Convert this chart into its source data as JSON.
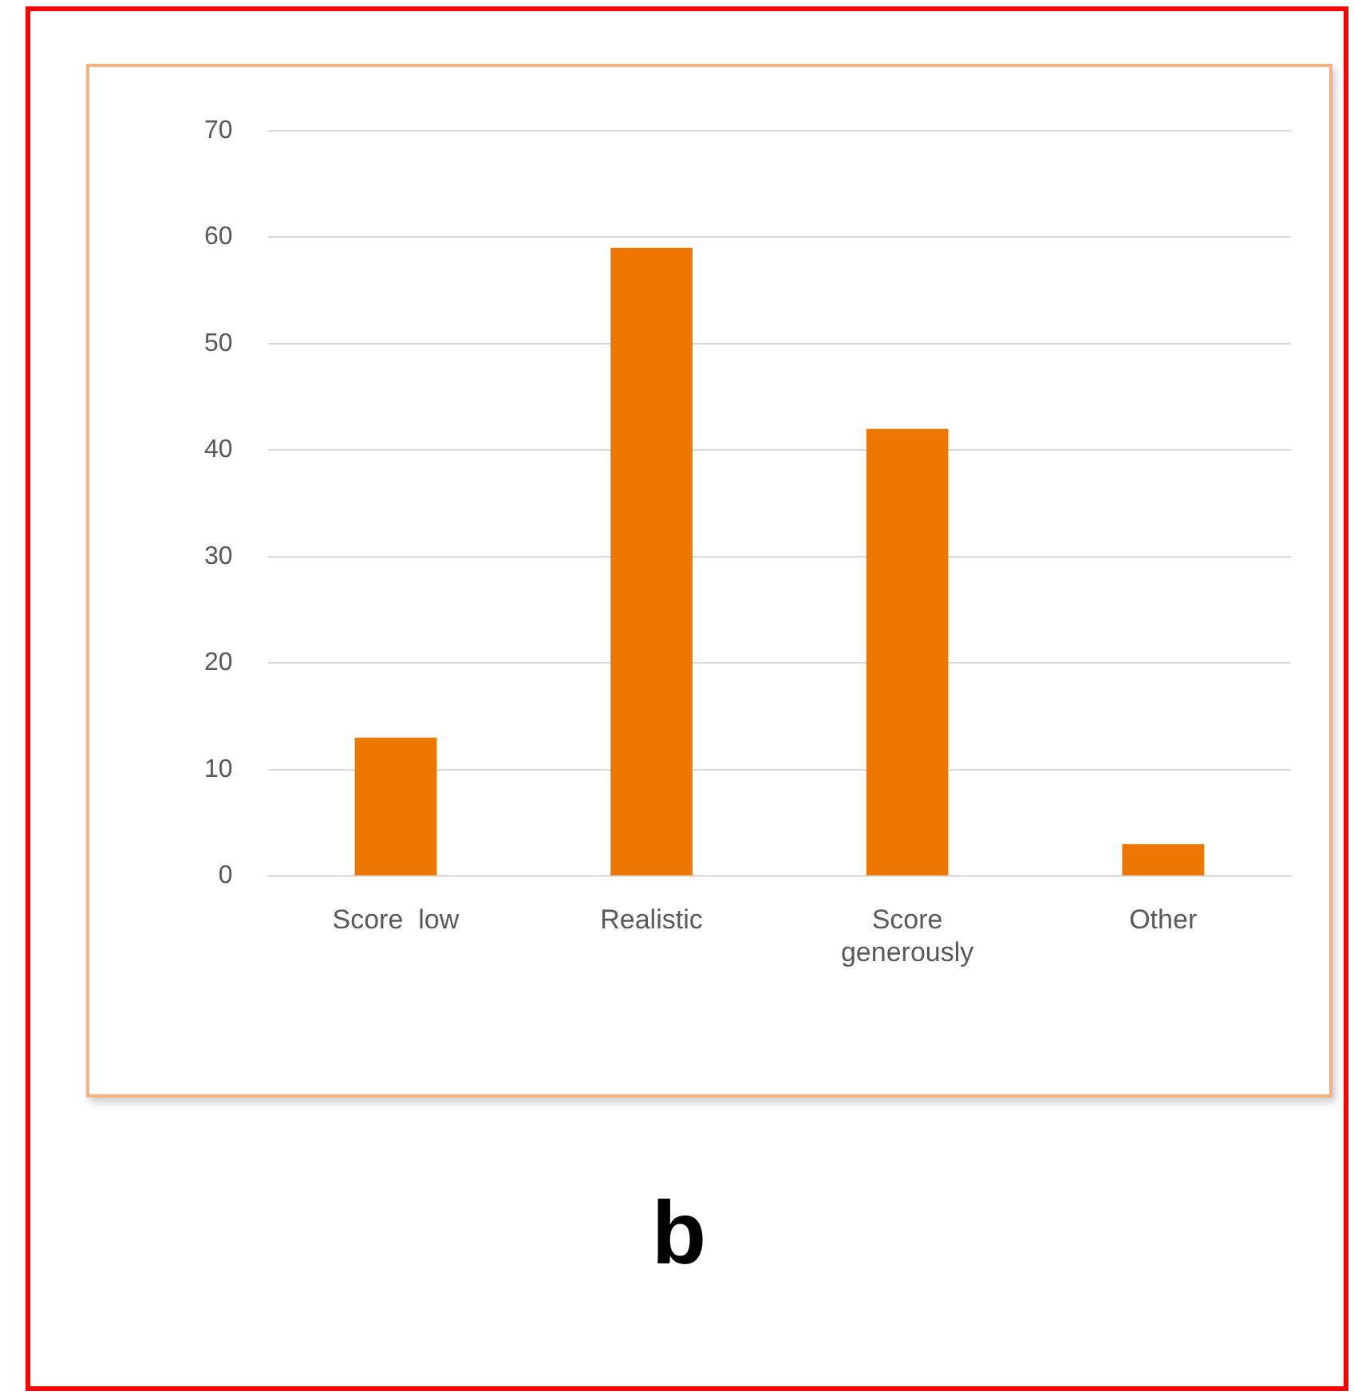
{
  "chart_data": {
    "type": "bar",
    "categories": [
      "Score  low",
      "Realistic",
      "Score generously",
      "Other"
    ],
    "values": [
      13,
      59,
      42,
      3
    ],
    "color": "#ed7700",
    "ylim": [
      0,
      70
    ],
    "yticks": [
      0,
      10,
      20,
      30,
      40,
      50,
      60,
      70
    ],
    "grid": "y",
    "legend": false,
    "annotations": [
      "b"
    ]
  }
}
